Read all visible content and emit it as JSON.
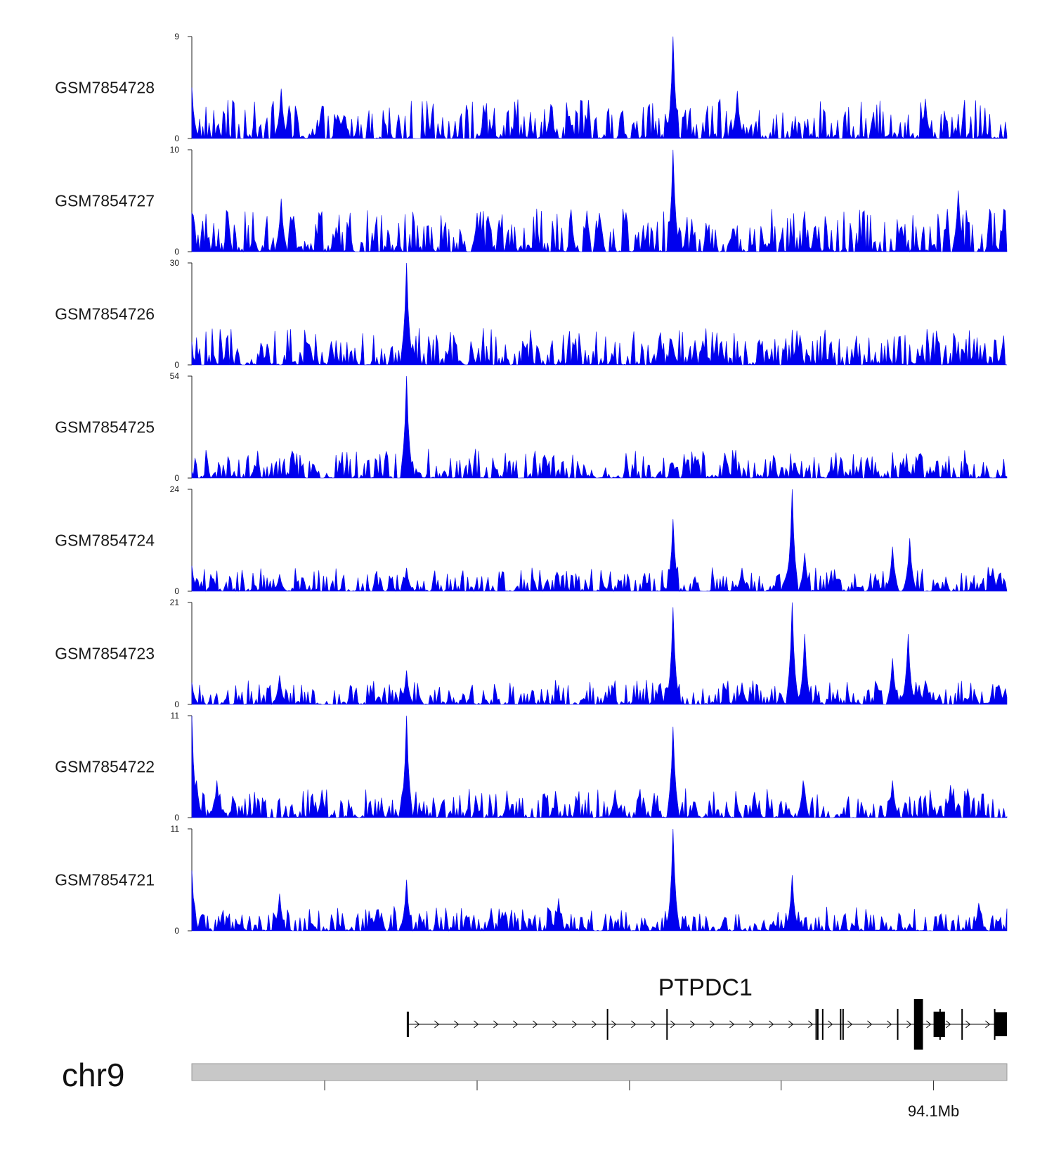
{
  "colors": {
    "signal": "#0000ee",
    "axis": "#222222",
    "gene": "#000000",
    "ideogram": "#c8c8c8"
  },
  "chart_data": {
    "type": "area",
    "description_type": "genome-browser-coverage",
    "chromosome": "chr9",
    "gene": {
      "name": "PTPDC1",
      "strand": "+"
    },
    "position_label": "94.1Mb",
    "tracks": [
      {
        "name": "GSM7854728",
        "ymax": 9,
        "ymin": 0,
        "peaks": [
          [
            0.0,
            4.5
          ],
          [
            0.11,
            4.4
          ],
          [
            0.44,
            3.0
          ],
          [
            0.59,
            9.0
          ],
          [
            0.67,
            4.2
          ],
          [
            0.9,
            3.5
          ]
        ],
        "baseline": 1.6
      },
      {
        "name": "GSM7854727",
        "ymax": 10,
        "ymin": 0,
        "peaks": [
          [
            0.0,
            3.8
          ],
          [
            0.11,
            5.2
          ],
          [
            0.35,
            3.8
          ],
          [
            0.5,
            3.8
          ],
          [
            0.59,
            10.0
          ],
          [
            0.94,
            6.0
          ]
        ],
        "baseline": 1.8
      },
      {
        "name": "GSM7854726",
        "ymax": 30,
        "ymin": 0,
        "peaks": [
          [
            0.0,
            4.0
          ],
          [
            0.145,
            6.0
          ],
          [
            0.264,
            30.0
          ],
          [
            0.59,
            5.5
          ],
          [
            0.74,
            4.5
          ],
          [
            0.96,
            4.5
          ]
        ],
        "baseline": 1.5
      },
      {
        "name": "GSM7854725",
        "ymax": 54,
        "ymin": 0,
        "peaks": [
          [
            0.0,
            3.0
          ],
          [
            0.15,
            7.0
          ],
          [
            0.263,
            54.0
          ],
          [
            0.59,
            8.0
          ],
          [
            0.74,
            8.0
          ],
          [
            0.91,
            4.0
          ]
        ],
        "baseline": 1.2
      },
      {
        "name": "GSM7854724",
        "ymax": 24,
        "ymin": 0,
        "peaks": [
          [
            0.0,
            6.0
          ],
          [
            0.108,
            4.0
          ],
          [
            0.263,
            5.5
          ],
          [
            0.59,
            17.0
          ],
          [
            0.675,
            5.5
          ],
          [
            0.736,
            24.0
          ],
          [
            0.751,
            9.0
          ],
          [
            0.86,
            10.5
          ],
          [
            0.88,
            12.5
          ],
          [
            0.99,
            4.0
          ]
        ],
        "baseline": 1.0
      },
      {
        "name": "GSM7854723",
        "ymax": 21,
        "ymin": 0,
        "peaks": [
          [
            0.0,
            4.5
          ],
          [
            0.107,
            6.0
          ],
          [
            0.263,
            7.0
          ],
          [
            0.59,
            20.0
          ],
          [
            0.675,
            4.5
          ],
          [
            0.736,
            21.0
          ],
          [
            0.751,
            14.5
          ],
          [
            0.86,
            9.5
          ],
          [
            0.879,
            14.5
          ],
          [
            0.892,
            4.0
          ],
          [
            0.99,
            4.0
          ]
        ],
        "baseline": 1.0
      },
      {
        "name": "GSM7854722",
        "ymax": 11,
        "ymin": 0,
        "peaks": [
          [
            0.0,
            11.0
          ],
          [
            0.005,
            4.0
          ],
          [
            0.03,
            4.0
          ],
          [
            0.16,
            3.0
          ],
          [
            0.263,
            11.0
          ],
          [
            0.59,
            9.8
          ],
          [
            0.52,
            3.0
          ],
          [
            0.75,
            4.0
          ],
          [
            0.86,
            4.0
          ],
          [
            0.93,
            3.5
          ]
        ],
        "baseline": 1.2
      },
      {
        "name": "GSM7854721",
        "ymax": 11,
        "ymin": 0,
        "peaks": [
          [
            0.0,
            6.5
          ],
          [
            0.108,
            4.0
          ],
          [
            0.263,
            5.5
          ],
          [
            0.45,
            3.5
          ],
          [
            0.59,
            11.0
          ],
          [
            0.736,
            6.0
          ],
          [
            0.965,
            3.0
          ]
        ],
        "baseline": 1.0
      }
    ],
    "gene_structure": {
      "start_frac": 0.265,
      "end_frac": 1.0,
      "exon_fracs": [
        0.265,
        0.51,
        0.583,
        0.766,
        0.768,
        0.774,
        0.796,
        0.799,
        0.866,
        0.889,
        0.918,
        0.945,
        0.985
      ],
      "thick_exons": [
        [
          0.886,
          0.897
        ],
        [
          0.91,
          0.924
        ],
        [
          0.985,
          1.0
        ]
      ]
    },
    "axis": {
      "ticks_frac": [
        0.163,
        0.35,
        0.537,
        0.723,
        0.91
      ],
      "label_tick_index": 4,
      "label": "94.1Mb"
    }
  }
}
